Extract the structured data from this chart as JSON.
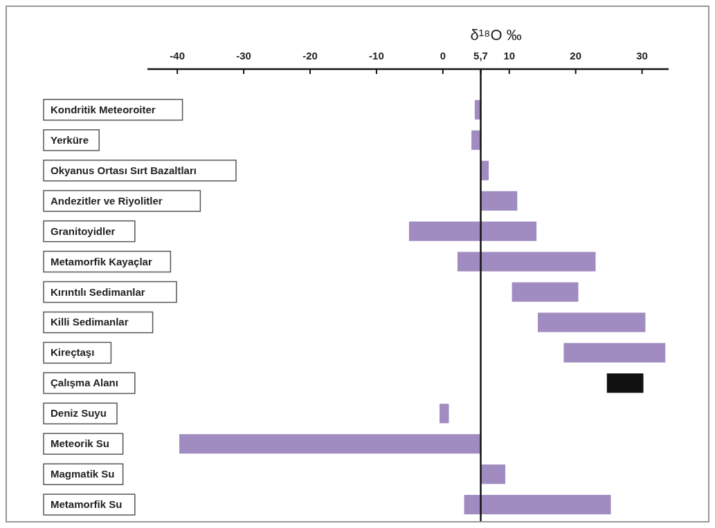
{
  "chart_data": {
    "type": "bar",
    "orientation": "horizontal",
    "xlabel": "δ¹⁸O ‰",
    "categories": [
      "Kondritik Meteoroiter",
      "Yerküre",
      "Okyanus Ortası Sırt Bazaltları",
      "Andezitler ve Riyolitler",
      "Granitoyidler",
      "Metamorfik Kayaçlar",
      "Kırıntılı Sedimanlar",
      "Killi Sedimanlar",
      "Kireçtaşı",
      "Çalışma Alanı",
      "Deniz Suyu",
      "Meteorik Su",
      "Magmatik Su",
      "Metamorfik Su"
    ],
    "base": [
      4.8,
      4.3,
      5.7,
      5.7,
      -5.1,
      2.2,
      10.4,
      14.3,
      18.2,
      24.7,
      -0.5,
      -39.7,
      5.7,
      3.2
    ],
    "values": [
      0.9,
      1.4,
      1.2,
      5.5,
      19.2,
      20.8,
      10.0,
      16.2,
      15.3,
      5.5,
      1.4,
      45.4,
      3.7,
      22.1
    ],
    "colors": [
      "#a08cc0",
      "#a08cc0",
      "#a08cc0",
      "#a08cc0",
      "#a08cc0",
      "#a08cc0",
      "#a08cc0",
      "#a08cc0",
      "#a08cc0",
      "#111111",
      "#a08cc0",
      "#a08cc0",
      "#a08cc0",
      "#a08cc0"
    ],
    "xlim": [
      -44.5,
      34
    ],
    "xticks": [
      -40,
      -30,
      -20,
      -10,
      0,
      {
        "value": 5.7,
        "label": "5,7"
      },
      10,
      20,
      30
    ],
    "ref_lines": [
      {
        "axis": "x",
        "value": 5.7,
        "color": "#111111"
      }
    ],
    "grid": false
  }
}
